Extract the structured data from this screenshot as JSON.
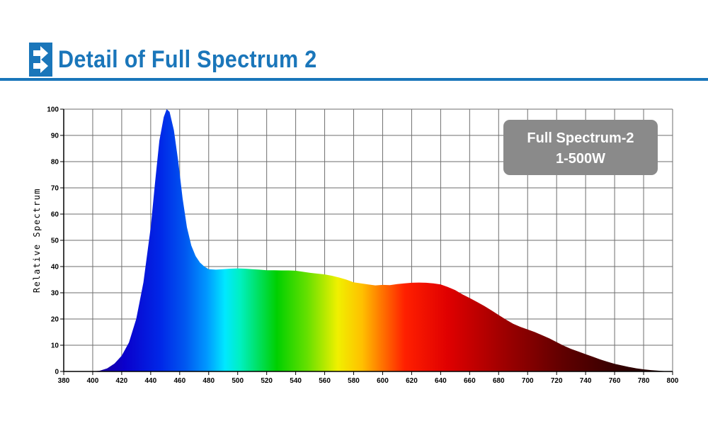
{
  "header": {
    "title": "Detail of Full Spectrum 2",
    "icon": "double-arrow-right-icon",
    "accent_color": "#1a76ba"
  },
  "chart_data": {
    "type": "area",
    "title": "",
    "xlabel": "",
    "ylabel": "Relative Spectrum",
    "xlim": [
      380,
      800
    ],
    "ylim": [
      0,
      100
    ],
    "x_ticks": [
      380,
      400,
      420,
      440,
      460,
      480,
      500,
      520,
      540,
      560,
      580,
      600,
      620,
      640,
      660,
      680,
      700,
      720,
      740,
      760,
      780,
      800
    ],
    "y_ticks": [
      0,
      10,
      20,
      30,
      40,
      50,
      60,
      70,
      80,
      90,
      100
    ],
    "grid": true,
    "legend": {
      "placement": "top-right",
      "lines": [
        "Full Spectrum-2",
        "1-500W"
      ],
      "background_color": "#8a8a8a"
    },
    "series": [
      {
        "x": [
          380,
          400,
          405,
          410,
          415,
          420,
          425,
          430,
          435,
          440,
          443,
          446,
          449,
          451,
          453,
          456,
          459,
          462,
          465,
          468,
          471,
          474,
          477,
          480,
          485,
          490,
          495,
          500,
          505,
          510,
          515,
          520,
          525,
          530,
          535,
          540,
          545,
          550,
          555,
          560,
          565,
          570,
          575,
          580,
          585,
          590,
          595,
          600,
          605,
          610,
          615,
          620,
          625,
          630,
          635,
          640,
          645,
          650,
          655,
          660,
          665,
          670,
          675,
          680,
          685,
          690,
          695,
          700,
          705,
          710,
          715,
          720,
          725,
          730,
          735,
          740,
          745,
          750,
          755,
          760,
          765,
          770,
          775,
          780,
          785,
          790,
          795,
          800
        ],
        "y": [
          0,
          0,
          0.3,
          1.2,
          3,
          6,
          11,
          20,
          34,
          55,
          72,
          88,
          97,
          100,
          99,
          92,
          80,
          66,
          55,
          48,
          44,
          41.5,
          40,
          39,
          38.8,
          39,
          39.2,
          39.3,
          39.2,
          39,
          38.8,
          38.6,
          38.6,
          38.5,
          38.5,
          38.4,
          38,
          37.6,
          37.3,
          37,
          36.5,
          35.8,
          35,
          34,
          33.6,
          33.2,
          32.8,
          33,
          32.9,
          33.3,
          33.6,
          33.8,
          33.9,
          33.8,
          33.6,
          33.2,
          32.2,
          31,
          29.4,
          28,
          26.5,
          25,
          23.3,
          21.5,
          19.8,
          18.2,
          17,
          16,
          15,
          13.8,
          12.6,
          11.2,
          9.8,
          8.6,
          7.6,
          6.6,
          5.6,
          4.6,
          3.7,
          2.9,
          2.3,
          1.7,
          1.2,
          0.8,
          0.5,
          0.3,
          0.1,
          0
        ]
      }
    ]
  }
}
